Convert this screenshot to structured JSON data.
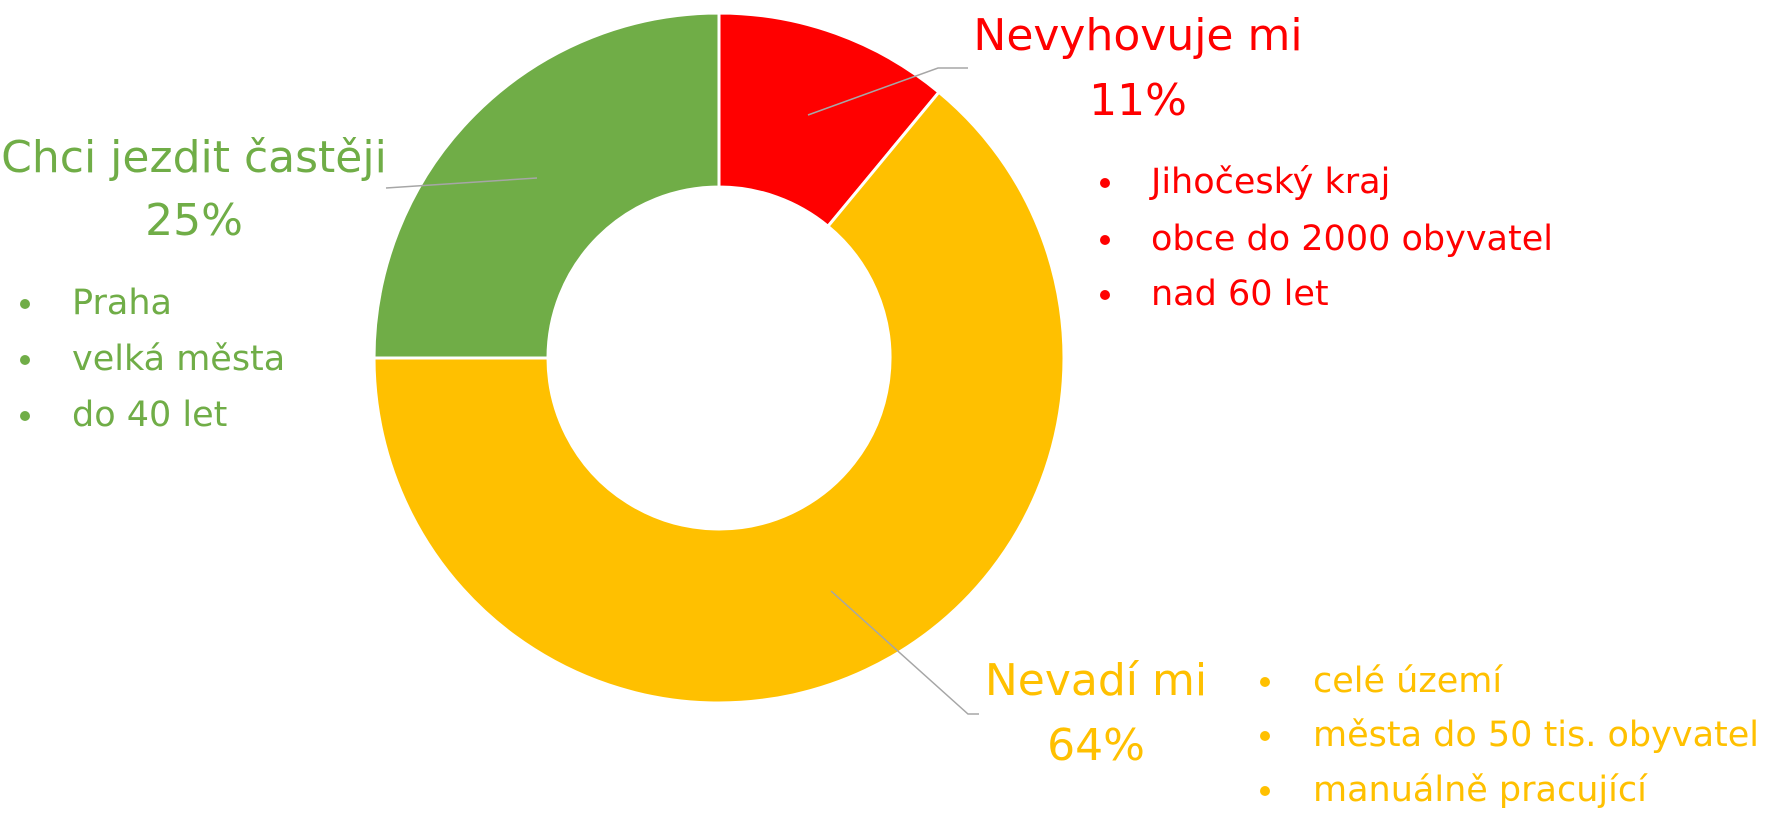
{
  "chart_data": {
    "type": "pie",
    "donut": true,
    "categories": [
      "Nevyhovuje mi",
      "Nevadí mi",
      "Chci jezdit častěji"
    ],
    "values": [
      11,
      64,
      25
    ],
    "value_labels": [
      "11%",
      "64%",
      "25%"
    ],
    "colors": [
      "#ff0000",
      "#ffc000",
      "#70ad47"
    ],
    "details": [
      [
        "Jihočeský kraj",
        "obce do 2000 obyvatel",
        "nad 60 let"
      ],
      [
        "celé území",
        "města do 50 tis. obyvatel",
        "manuálně pracující"
      ],
      [
        "Praha",
        "velká města",
        "do 40 let"
      ]
    ]
  }
}
